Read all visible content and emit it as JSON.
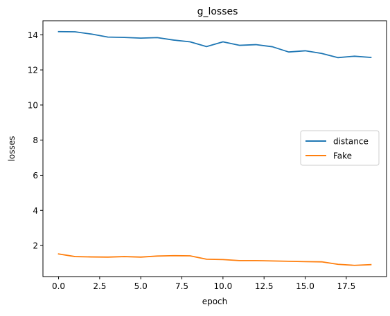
{
  "chart_data": {
    "type": "line",
    "title": "g_losses",
    "xlabel": "epoch",
    "ylabel": "losses",
    "xlim": [
      -0.95,
      19.95
    ],
    "ylim": [
      0.23,
      14.8
    ],
    "xticks": [
      0.0,
      2.5,
      5.0,
      7.5,
      10.0,
      12.5,
      15.0,
      17.5
    ],
    "xtick_labels": [
      "0.0",
      "2.5",
      "5.0",
      "7.5",
      "10.0",
      "12.5",
      "15.0",
      "17.5"
    ],
    "yticks": [
      2,
      4,
      6,
      8,
      10,
      12,
      14
    ],
    "ytick_labels": [
      "2",
      "4",
      "6",
      "8",
      "10",
      "12",
      "14"
    ],
    "grid": false,
    "legend_position": "center-right",
    "x": [
      0,
      1,
      2,
      3,
      4,
      5,
      6,
      7,
      8,
      9,
      10,
      11,
      12,
      13,
      14,
      15,
      16,
      17,
      18,
      19
    ],
    "series": [
      {
        "name": "distance",
        "color": "#1f77b4",
        "values": [
          14.18,
          14.17,
          14.04,
          13.87,
          13.85,
          13.81,
          13.84,
          13.7,
          13.6,
          13.33,
          13.6,
          13.4,
          13.44,
          13.32,
          13.02,
          13.09,
          12.94,
          12.7,
          12.78,
          12.71
        ]
      },
      {
        "name": "Fake",
        "color": "#ff7f0e",
        "values": [
          1.52,
          1.37,
          1.35,
          1.34,
          1.37,
          1.34,
          1.4,
          1.42,
          1.41,
          1.22,
          1.2,
          1.14,
          1.14,
          1.12,
          1.1,
          1.08,
          1.07,
          0.93,
          0.87,
          0.91
        ]
      }
    ]
  }
}
